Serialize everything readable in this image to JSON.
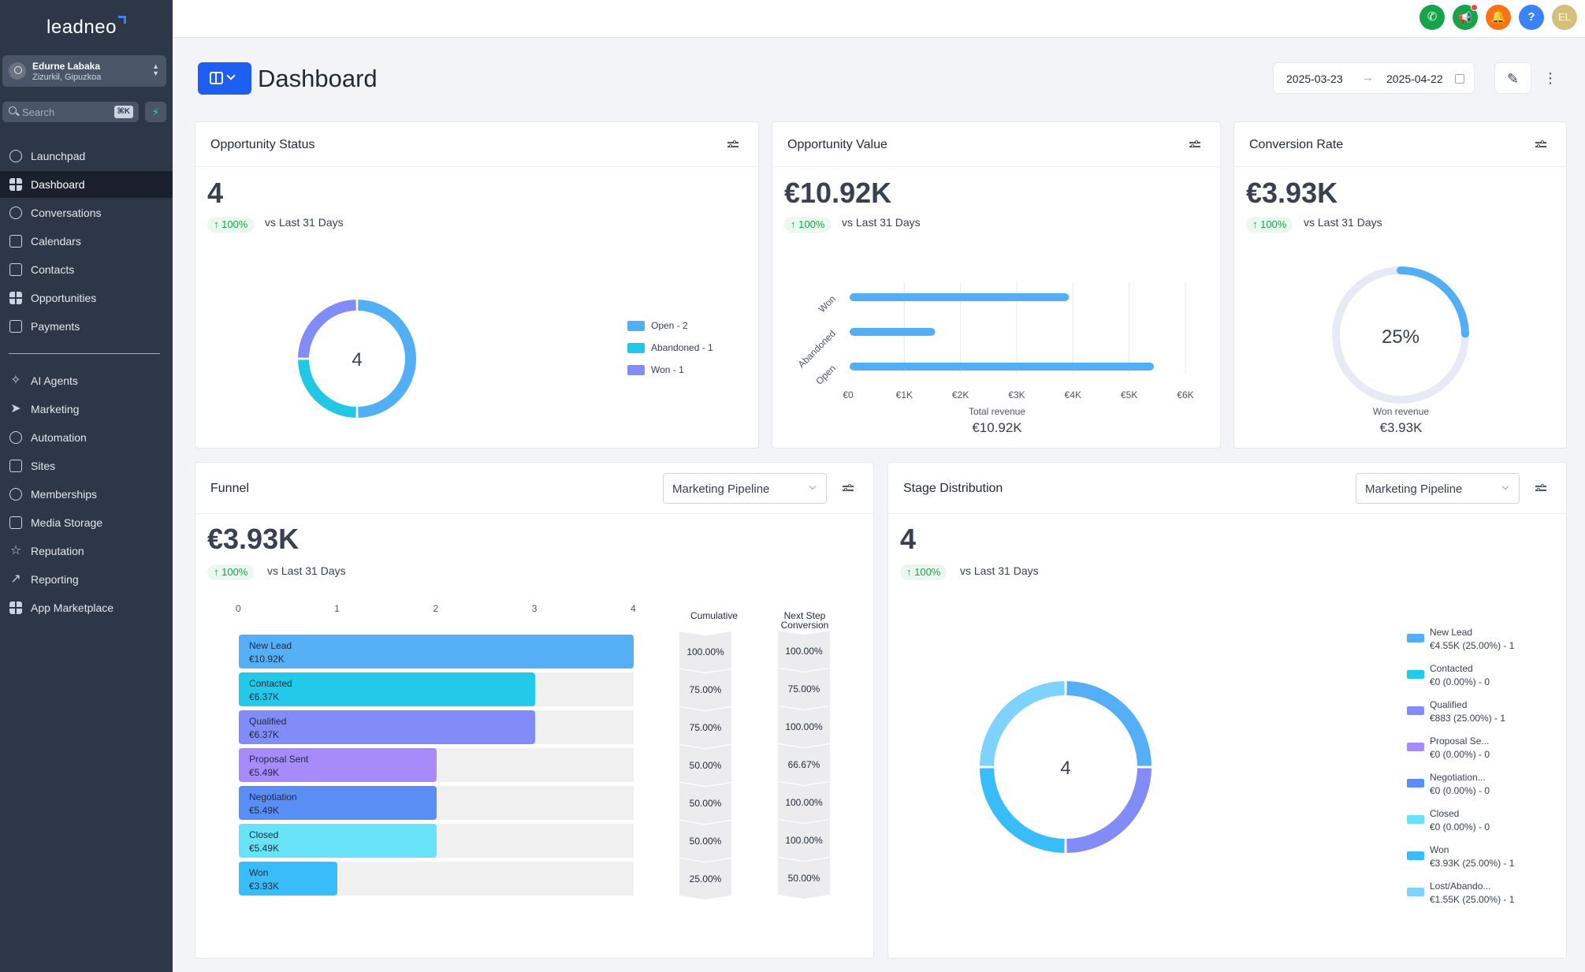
{
  "brand": {
    "logo": "leadneo"
  },
  "account": {
    "name": "Edurne Labaka",
    "location": "Zizurkil, Gipuzkoa"
  },
  "search": {
    "placeholder": "Search",
    "shortcut": "⌘K"
  },
  "nav": {
    "items": [
      "Launchpad",
      "Dashboard",
      "Conversations",
      "Calendars",
      "Contacts",
      "Opportunities",
      "Payments"
    ],
    "items2": [
      "AI Agents",
      "Marketing",
      "Automation",
      "Sites",
      "Memberships",
      "Media Storage",
      "Reputation",
      "Reporting",
      "App Marketplace"
    ],
    "active": "Dashboard"
  },
  "topbar": {
    "avatar_initials": "EL",
    "help": "?"
  },
  "header": {
    "title": "Dashboard",
    "date_from": "2025-03-23",
    "date_to": "2025-04-22"
  },
  "cards": {
    "opportunity_status": {
      "title": "Opportunity Status",
      "value": "4",
      "change": "↑ 100%",
      "vs": "vs Last 31 Days",
      "center": "4",
      "legend": [
        "Open - 2",
        "Abandoned - 1",
        "Won - 1"
      ]
    },
    "opportunity_value": {
      "title": "Opportunity Value",
      "value": "€10.92K",
      "change": "↑ 100%",
      "vs": "vs Last 31 Days",
      "footer_label": "Total revenue",
      "footer_value": "€10.92K"
    },
    "conversion_rate": {
      "title": "Conversion Rate",
      "value": "€3.93K",
      "change": "↑ 100%",
      "vs": "vs Last 31 Days",
      "center": "25%",
      "footer_label": "Won revenue",
      "footer_value": "€3.93K"
    },
    "funnel": {
      "title": "Funnel",
      "pipeline": "Marketing Pipeline",
      "value": "€3.93K",
      "change": "↑ 100%",
      "vs": "vs Last 31 Days",
      "col_cumulative": "Cumulative",
      "col_next": "Next Step Conversion"
    },
    "stage_distribution": {
      "title": "Stage Distribution",
      "pipeline": "Marketing Pipeline",
      "value": "4",
      "change": "↑ 100%",
      "vs": "vs Last 31 Days",
      "center": "4",
      "legend": [
        {
          "name": "New Lead",
          "detail": "€4.55K (25.00%) - 1"
        },
        {
          "name": "Contacted",
          "detail": "€0 (0.00%) - 0"
        },
        {
          "name": "Qualified",
          "detail": "€883 (25.00%) - 1"
        },
        {
          "name": "Proposal Se...",
          "detail": "€0 (0.00%) - 0"
        },
        {
          "name": "Negotiation...",
          "detail": "€0 (0.00%) - 0"
        },
        {
          "name": "Closed",
          "detail": "€0 (0.00%) - 0"
        },
        {
          "name": "Won",
          "detail": "€3.93K (25.00%) - 1"
        },
        {
          "name": "Lost/Abando...",
          "detail": "€1.55K (25.00%) - 1"
        }
      ]
    }
  },
  "colors": {
    "open": "#52aef5",
    "abandoned": "#22c7e6",
    "won": "#818cf8",
    "new_lead": "#55aff7",
    "contacted": "#22c9e8",
    "qualified": "#818cf8",
    "proposal": "#a78bfa",
    "negotiation": "#5b8ef5",
    "closed": "#67e2f7",
    "won_stage": "#38bdf8",
    "lost": "#7dd3fc"
  },
  "chart_data": [
    {
      "type": "pie",
      "title": "Opportunity Status",
      "categories": [
        "Open",
        "Abandoned",
        "Won"
      ],
      "values": [
        2,
        1,
        1
      ]
    },
    {
      "type": "bar",
      "title": "Opportunity Value",
      "orientation": "horizontal",
      "categories": [
        "Won",
        "Abandoned",
        "Open"
      ],
      "values": [
        3930,
        1550,
        5440
      ],
      "xlabel": "Total revenue",
      "xticks": [
        "€0",
        "€1K",
        "€2K",
        "€3K",
        "€4K",
        "€5K",
        "€6K"
      ],
      "xlim": [
        0,
        6000
      ]
    },
    {
      "type": "pie",
      "title": "Conversion Rate",
      "categories": [
        "Won"
      ],
      "values": [
        25
      ]
    },
    {
      "type": "bar",
      "title": "Funnel",
      "orientation": "horizontal",
      "categories": [
        "New Lead",
        "Contacted",
        "Qualified",
        "Proposal Sent",
        "Negotiation",
        "Closed",
        "Won"
      ],
      "values": [
        4,
        3,
        3,
        2,
        2,
        2,
        1
      ],
      "value_labels": [
        "€10.92K",
        "€6.37K",
        "€6.37K",
        "€5.49K",
        "€5.49K",
        "€5.49K",
        "€3.93K"
      ],
      "cumulative": [
        "100.00%",
        "75.00%",
        "75.00%",
        "50.00%",
        "50.00%",
        "50.00%",
        "25.00%"
      ],
      "next_step_conversion": [
        "100.00%",
        "75.00%",
        "100.00%",
        "66.67%",
        "100.00%",
        "100.00%",
        "50.00%"
      ],
      "xticks": [
        "0",
        "1",
        "2",
        "3",
        "4"
      ],
      "xlim": [
        0,
        4
      ]
    },
    {
      "type": "pie",
      "title": "Stage Distribution",
      "categories": [
        "New Lead",
        "Contacted",
        "Qualified",
        "Proposal Sent",
        "Negotiation",
        "Closed",
        "Won",
        "Lost/Abandoned"
      ],
      "values": [
        1,
        0,
        1,
        0,
        0,
        0,
        1,
        1
      ]
    }
  ]
}
